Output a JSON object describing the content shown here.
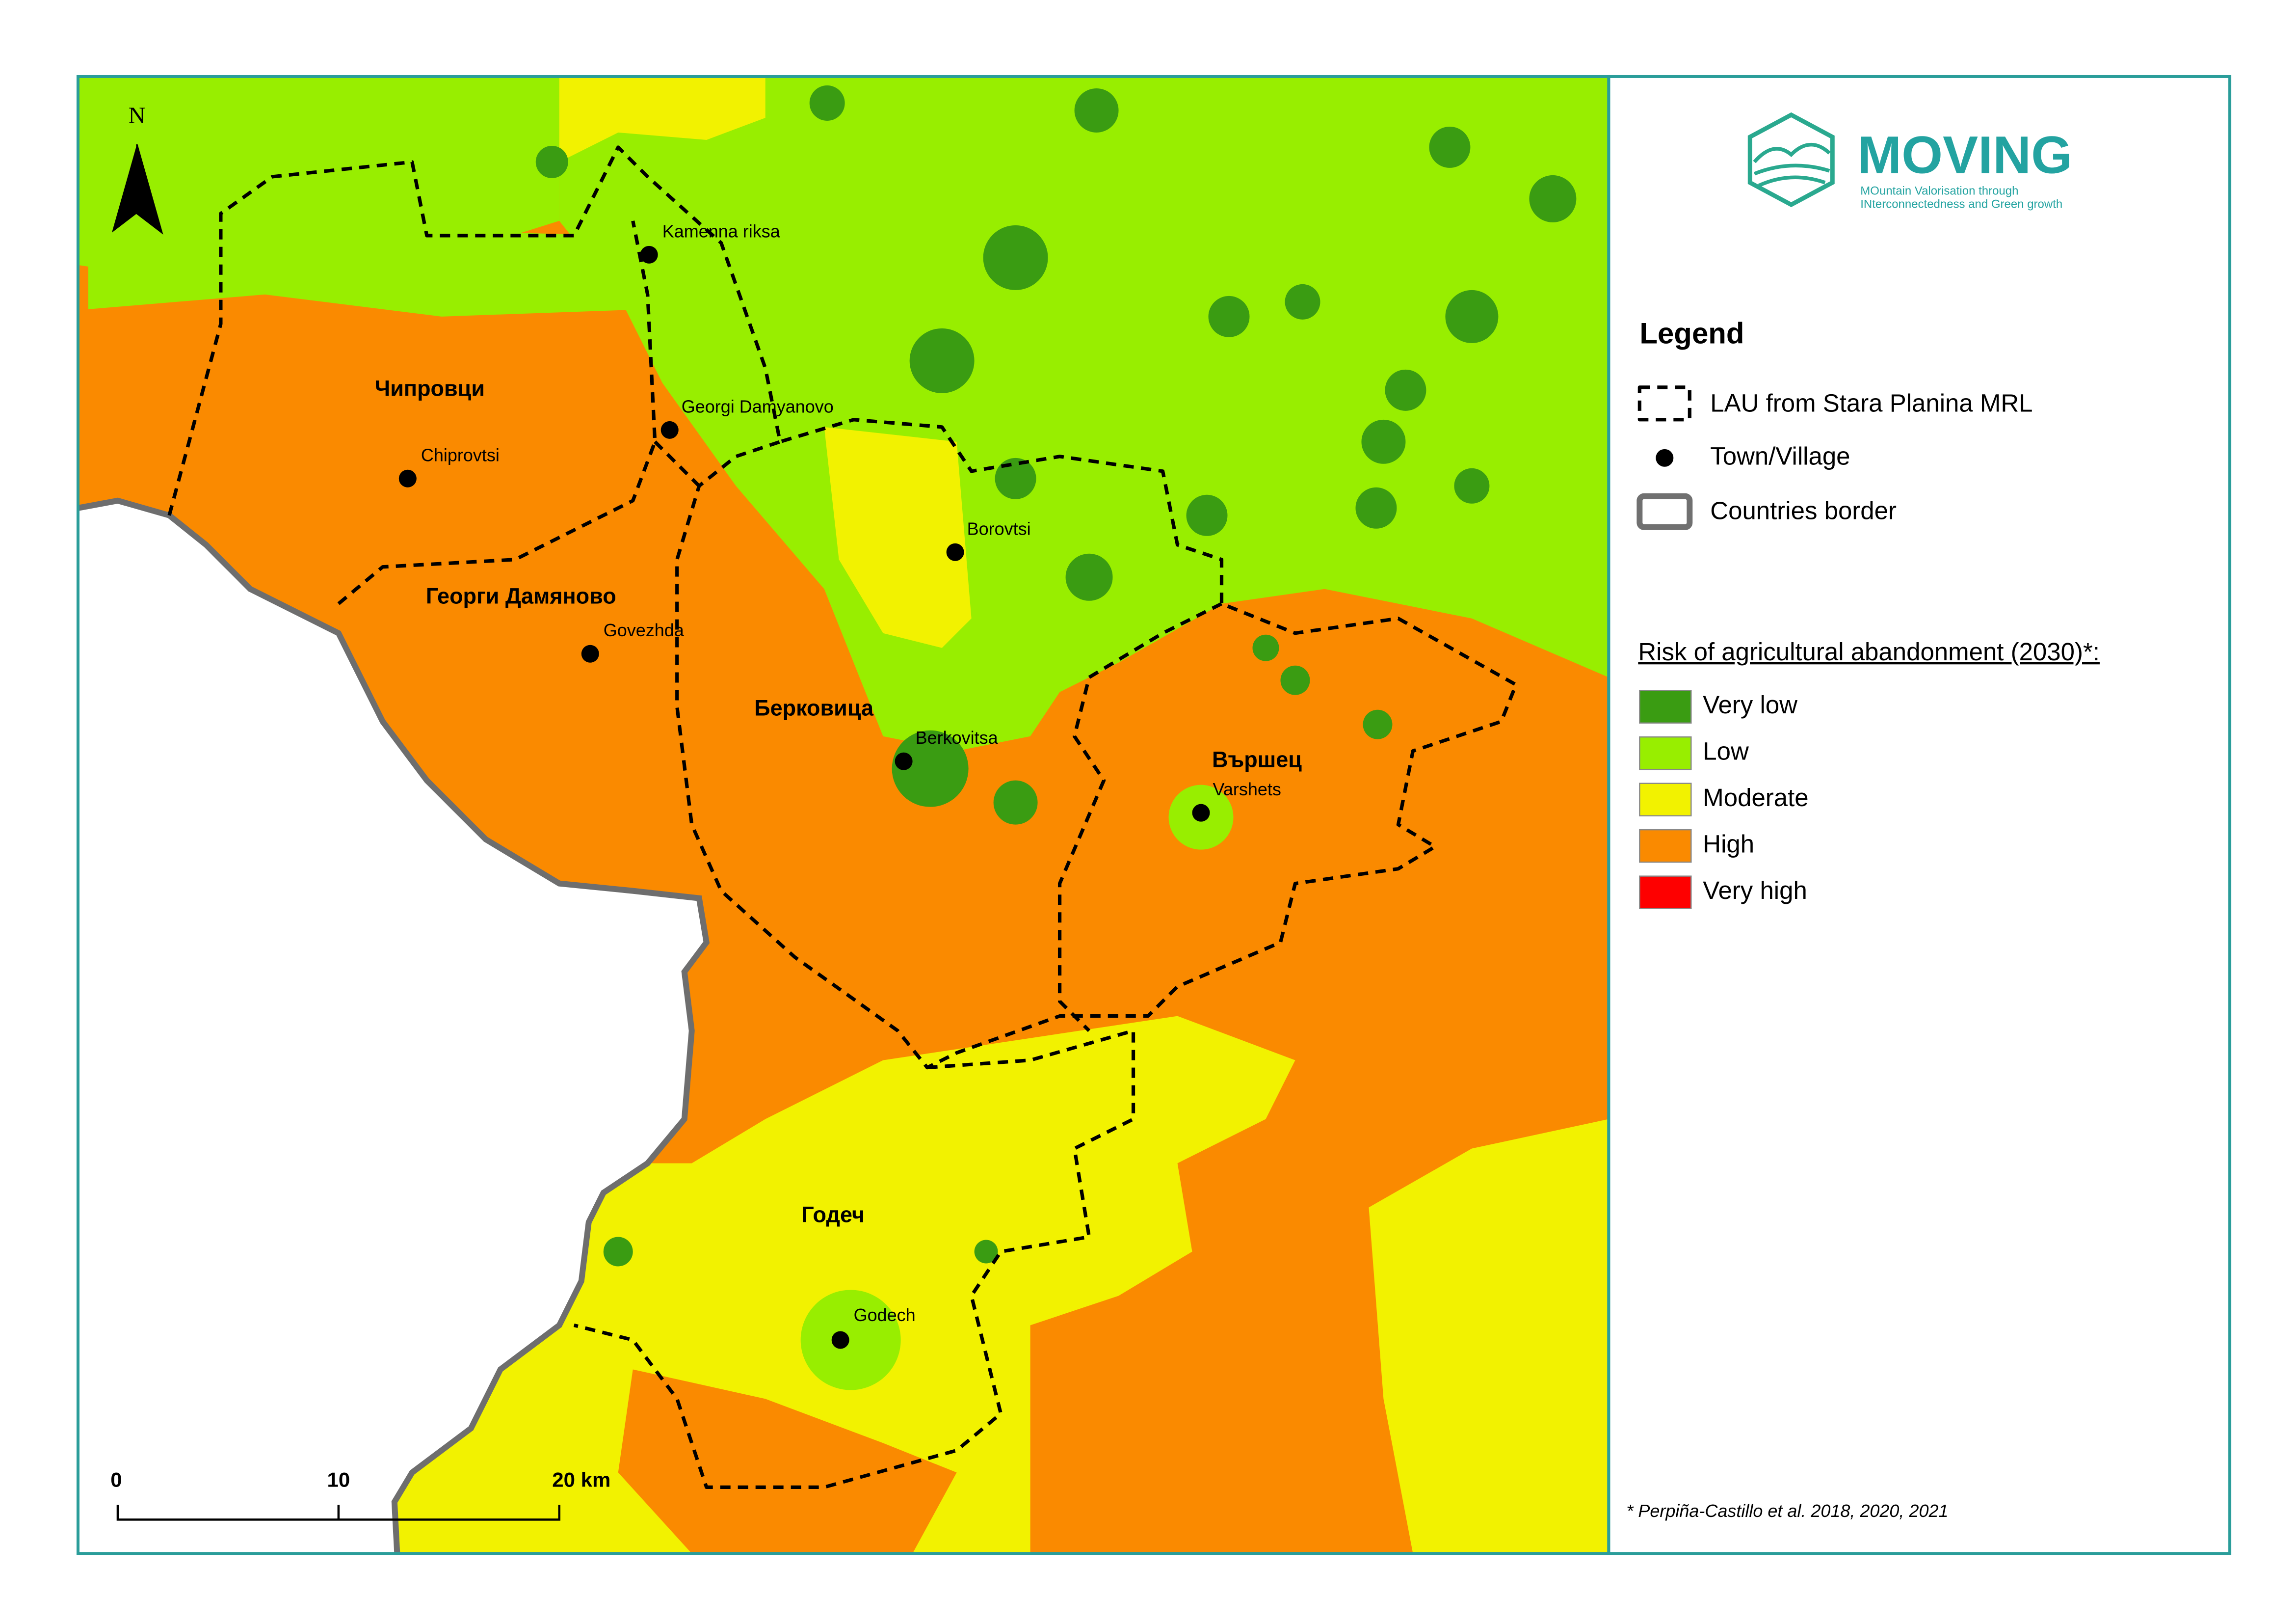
{
  "logo": {
    "title": "MOVING",
    "tagline_lines": [
      "MOuntain Valorisation through",
      "INterconnectedness and Green growth"
    ]
  },
  "legend": {
    "title": "Legend",
    "items": [
      {
        "label": "LAU from Stara Planina MRL"
      },
      {
        "label": "Town/Village"
      },
      {
        "label": "Countries border"
      }
    ],
    "risk_title": "Risk of agricultural abandonment (2030)*:",
    "classes": [
      {
        "label": "Very low",
        "color": "#3a9c12"
      },
      {
        "label": "Low",
        "color": "#98ee00"
      },
      {
        "label": "Moderate",
        "color": "#f2f200"
      },
      {
        "label": "High",
        "color": "#fa8a00"
      },
      {
        "label": "Very high",
        "color": "#fe0000"
      }
    ]
  },
  "source_note": "* Perpiña-Castillo et al. 2018, 2020, 2021",
  "map": {
    "north_label": "N",
    "scale_bar": {
      "labels": [
        "0",
        "10",
        "20 km"
      ]
    },
    "municipalities": [
      {
        "label": "Чипровци"
      },
      {
        "label": "Георги Дамяново"
      },
      {
        "label": "Берковица"
      },
      {
        "label": "Вършец"
      },
      {
        "label": "Годеч"
      }
    ],
    "towns": [
      {
        "label": "Kamenna riksa"
      },
      {
        "label": "Georgi Damyanovo"
      },
      {
        "label": "Chiprovtsi"
      },
      {
        "label": "Borovtsi"
      },
      {
        "label": "Govezhda"
      },
      {
        "label": "Berkovitsa"
      },
      {
        "label": "Varshets"
      },
      {
        "label": "Godech"
      }
    ]
  }
}
